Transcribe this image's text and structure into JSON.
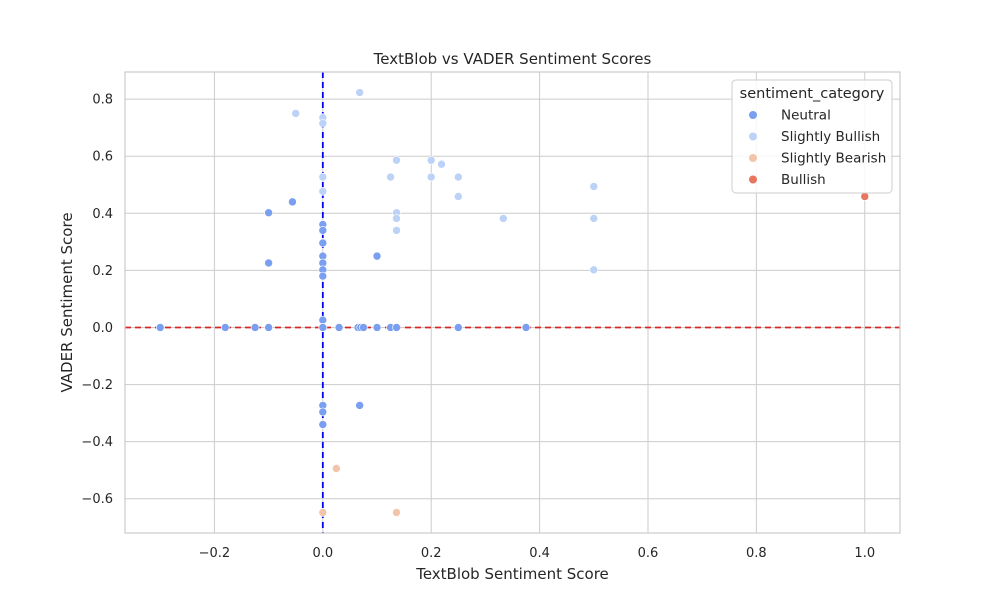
{
  "chart_data": {
    "type": "scatter",
    "title": "TextBlob vs VADER Sentiment Scores",
    "xlabel": "TextBlob Sentiment Score",
    "ylabel": "VADER Sentiment Score",
    "xlim": [
      -0.365,
      1.065
    ],
    "ylim": [
      -0.72,
      0.895
    ],
    "xticks": [
      -0.2,
      0.0,
      0.2,
      0.4,
      0.6,
      0.8,
      1.0
    ],
    "xtick_labels": [
      "−0.2",
      "0.0",
      "0.2",
      "0.4",
      "0.6",
      "0.8",
      "1.0"
    ],
    "yticks": [
      -0.6,
      -0.4,
      -0.2,
      0.0,
      0.2,
      0.4,
      0.6,
      0.8
    ],
    "ytick_labels": [
      "−0.6",
      "−0.4",
      "−0.2",
      "0.0",
      "0.2",
      "0.4",
      "0.6",
      "0.8"
    ],
    "grid": true,
    "legend": {
      "title": "sentiment_category",
      "placement": "top-right",
      "entries": [
        "Neutral",
        "Slightly Bullish",
        "Slightly Bearish",
        "Bullish"
      ]
    },
    "reference_lines": [
      {
        "orientation": "horizontal",
        "value": 0.0,
        "color": "#d62728",
        "style": "dashed"
      },
      {
        "orientation": "vertical",
        "value": 0.0,
        "color": "#0000ff",
        "style": "dashed"
      }
    ],
    "series": [
      {
        "name": "Neutral",
        "color": "#7b9ff0",
        "x": [
          -0.3,
          -0.18,
          -0.125,
          -0.1,
          -0.1,
          -0.1,
          -0.056,
          0.0,
          0.0,
          0.0,
          0.0,
          0.0,
          0.0,
          0.0,
          0.0,
          0.0,
          0.0,
          0.0,
          0.0,
          0.0,
          0.0,
          0.0,
          0.0,
          0.03,
          0.065,
          0.07,
          0.075,
          0.1,
          0.1,
          0.125,
          0.136,
          0.25,
          0.375,
          0.068
        ],
        "y": [
          0.0,
          0.0,
          0.0,
          0.0,
          0.402,
          0.226,
          0.44,
          0.361,
          0.34,
          0.296,
          0.25,
          0.226,
          0.202,
          0.18,
          0.026,
          0.0,
          -0.273,
          -0.296,
          -0.34,
          0.34,
          0.0,
          0.0,
          0.0,
          0.0,
          0.0,
          0.0,
          0.0,
          0.0,
          0.25,
          0.0,
          0.0,
          0.0,
          0.0,
          -0.273
        ]
      },
      {
        "name": "Slightly Bullish",
        "color": "#bcd2f6",
        "x": [
          -0.05,
          0.0,
          0.0,
          0.0,
          0.0,
          0.068,
          0.125,
          0.136,
          0.136,
          0.136,
          0.136,
          0.2,
          0.2,
          0.219,
          0.25,
          0.25,
          0.333,
          0.5,
          0.5,
          0.5
        ],
        "y": [
          0.75,
          0.735,
          0.715,
          0.527,
          0.477,
          0.823,
          0.527,
          0.586,
          0.402,
          0.382,
          0.34,
          0.586,
          0.527,
          0.572,
          0.527,
          0.459,
          0.382,
          0.494,
          0.382,
          0.202
        ]
      },
      {
        "name": "Slightly Bearish",
        "color": "#f2c5ab",
        "x": [
          0.025,
          0.0,
          0.136
        ],
        "y": [
          -0.494,
          -0.648,
          -0.648
        ]
      },
      {
        "name": "Bullish",
        "color": "#e8755e",
        "x": [
          1.0
        ],
        "y": [
          0.459
        ]
      }
    ]
  }
}
